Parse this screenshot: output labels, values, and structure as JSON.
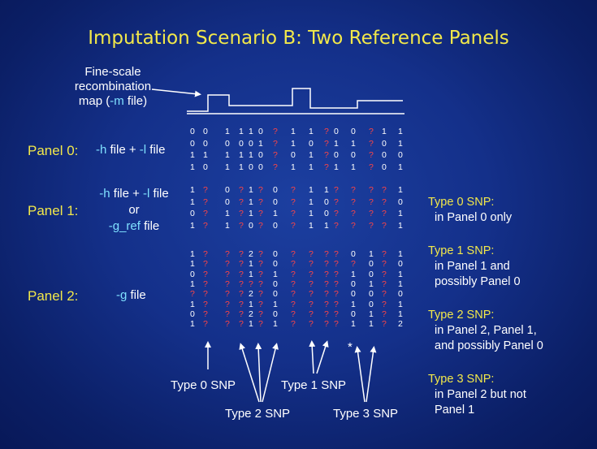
{
  "title": "Imputation Scenario B: Two Reference Panels",
  "recomb_label": [
    "Fine-scale",
    "recombination",
    "map (-m file)"
  ],
  "panels": [
    {
      "label": "Panel 0:",
      "file_parts": [
        {
          "t": "-h",
          "c": "cyan"
        },
        {
          "t": " file + ",
          "c": "white"
        },
        {
          "t": "-l",
          "c": "cyan"
        },
        {
          "t": " file",
          "c": "white"
        }
      ]
    },
    {
      "label": "Panel 1:",
      "file_line1": [
        {
          "t": "-h",
          "c": "cyan"
        },
        {
          "t": " file + ",
          "c": "white"
        },
        {
          "t": "-l",
          "c": "cyan"
        },
        {
          "t": " file",
          "c": "white"
        }
      ],
      "file_line2": "or",
      "file_line3": [
        {
          "t": "-g_ref",
          "c": "cyan"
        },
        {
          "t": " file",
          "c": "white"
        }
      ]
    },
    {
      "label": "Panel 2:",
      "file_parts": [
        {
          "t": "-g",
          "c": "cyan"
        },
        {
          "t": " file",
          "c": "white"
        }
      ]
    }
  ],
  "matrix_rows": {
    "panel0": [
      "0 0  1  1 1 0 ?  1  1 ? 0  0 ? 1 1",
      "0 0  0  0 0 1 ?  1  0 ? 1  1 ? 0 1",
      "1 1  1  1 1 0 ?  0  1 ? 0  0 ? 0 0",
      "1 0  1  1 0 0 ?  1  1 ? 1  1 ? 0 1"
    ],
    "panel1": [
      "1 ?  0  ? 1 ? 0  ?  1 1 ?  ? ? ? 1",
      "1 ?  0  ? 1 ? 0  ?  1 0 ?  ? ? ? 0",
      "0 ?  1  ? 1 ? 1  ?  1 0 ?  ? ? ? 1",
      "1 ?  1  ? 0 ? 0  ?  1 1 ?  ? ? ? 1"
    ],
    "panel2": [
      "1 ?  ?  ? 2 ? 0  ?  ? ? ?  0 1 ? 1",
      "1 ?  ?  ? 1 ? 0  ?  ? ? ?  ? 0 ? 0",
      "0 ?  ?  ? 1 ? 1  ?  ? ? ?  1 0 ? 1",
      "1 ?  ?  ? ? ? 0  ?  ? ? ?  0 1 ? 1",
      "? ?  ?  ? 2 ? 0  ?  ? ? ?  0 0 ? 0",
      "1 ?  ?  ? 1 ? 1  ?  ? ? ?  1 0 ? 1",
      "0 ?  ?  ? 2 ? 0  ?  ? ? ?  0 1 ? 1",
      "1 ?  ?  ? 1 ? 1  ?  ? ? ?  1 1 ? 2"
    ]
  },
  "type_descriptions": [
    {
      "head": "Type 0 SNP:",
      "lines": [
        "in Panel 0 only"
      ]
    },
    {
      "head": "Type 1 SNP:",
      "lines": [
        "in Panel 1 and",
        "possibly Panel 0"
      ]
    },
    {
      "head": "Type 2 SNP:",
      "lines": [
        "in Panel 2, Panel 1,",
        "and possibly Panel 0"
      ]
    },
    {
      "head": "Type 3 SNP:",
      "lines": [
        "in Panel 2 but not",
        "Panel 1"
      ]
    }
  ],
  "arrow_labels": {
    "type0": "Type 0 SNP",
    "type1": "Type 1 SNP",
    "type2": "Type 2 SNP",
    "type3": "Type 3 SNP",
    "star": "*"
  },
  "colors": {
    "yellow": "#f2e84a",
    "cyan": "#7fe0ff",
    "white": "#ffffff",
    "red": "#ff4444"
  }
}
